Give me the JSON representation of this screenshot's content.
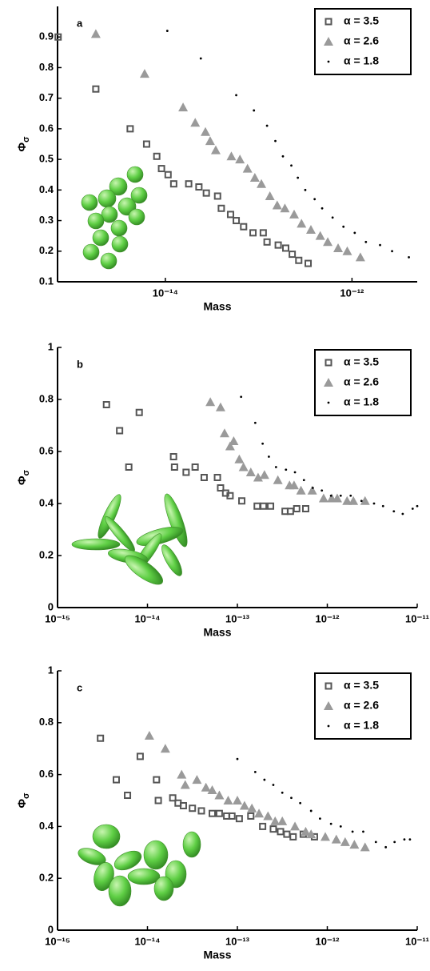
{
  "chart_data": [
    {
      "type": "scatter",
      "panel_label": "a",
      "xlabel": "Mass",
      "ylabel": "Φ",
      "ylabel_subscript": "σ",
      "xscale": "log",
      "xlim": [
        7e-16,
        5e-12
      ],
      "ylim": [
        0.1,
        1.0
      ],
      "grid": false,
      "legend": "upper right",
      "xticks": [
        {
          "value": 1e-14,
          "label": "10⁻¹⁴"
        },
        {
          "value": 1e-12,
          "label": "10⁻¹²"
        }
      ],
      "yticks": [
        0.1,
        0.2,
        0.3,
        0.4,
        0.5,
        0.6,
        0.7,
        0.8,
        0.9
      ],
      "series": [
        {
          "name": "α = 3.5",
          "marker": "square",
          "color": "#555555",
          "x": [
            7.1e-16,
            1.8e-15,
            4.2e-15,
            6.3e-15,
            8.1e-15,
            9.1e-15,
            1.07e-14,
            1.23e-14,
            1.78e-14,
            2.29e-14,
            2.75e-14,
            3.63e-14,
            3.98e-14,
            5e-14,
            5.75e-14,
            6.9e-14,
            8.7e-14,
            1.12e-13,
            1.23e-13,
            1.62e-13,
            1.95e-13,
            2.29e-13,
            2.69e-13,
            3.39e-13
          ],
          "values": [
            0.9,
            0.73,
            0.6,
            0.55,
            0.51,
            0.47,
            0.45,
            0.42,
            0.42,
            0.41,
            0.39,
            0.38,
            0.34,
            0.32,
            0.3,
            0.28,
            0.26,
            0.26,
            0.23,
            0.22,
            0.21,
            0.19,
            0.17,
            0.16
          ]
        },
        {
          "name": "α = 2.6",
          "marker": "triangle",
          "color": "#9a9a9a",
          "x": [
            1.8e-15,
            6e-15,
            1.55e-14,
            2.09e-14,
            2.69e-14,
            3.02e-14,
            3.47e-14,
            5.1e-14,
            6.3e-14,
            7.6e-14,
            9.1e-14,
            1.07e-13,
            1.32e-13,
            1.58e-13,
            1.91e-13,
            2.4e-13,
            2.88e-13,
            3.63e-13,
            4.57e-13,
            5.5e-13,
            7.1e-13,
            8.9e-13,
            1.23e-12
          ],
          "values": [
            0.91,
            0.78,
            0.67,
            0.62,
            0.59,
            0.56,
            0.53,
            0.51,
            0.5,
            0.47,
            0.44,
            0.42,
            0.38,
            0.35,
            0.34,
            0.32,
            0.29,
            0.27,
            0.25,
            0.23,
            0.21,
            0.2,
            0.18
          ]
        },
        {
          "name": "α = 1.8",
          "marker": "dot",
          "color": "#000000",
          "x": [
            1.05e-14,
            2.4e-14,
            5.75e-14,
            8.9e-14,
            1.23e-13,
            1.51e-13,
            1.82e-13,
            2.24e-13,
            2.63e-13,
            3.16e-13,
            3.98e-13,
            4.79e-13,
            6.2e-13,
            8.1e-13,
            1.07e-12,
            1.41e-12,
            2e-12,
            2.69e-12,
            4.07e-12
          ],
          "values": [
            0.92,
            0.83,
            0.71,
            0.66,
            0.61,
            0.56,
            0.51,
            0.48,
            0.44,
            0.4,
            0.37,
            0.34,
            0.31,
            0.28,
            0.26,
            0.23,
            0.22,
            0.2,
            0.18
          ]
        }
      ]
    },
    {
      "type": "scatter",
      "panel_label": "b",
      "xlabel": "Mass",
      "ylabel": "Φ",
      "ylabel_subscript": "σ",
      "xscale": "log",
      "xlim": [
        1e-15,
        1e-11
      ],
      "ylim": [
        0,
        1
      ],
      "grid": false,
      "legend": "upper right",
      "xticks": [
        {
          "value": 1e-15,
          "label": "10⁻¹⁵"
        },
        {
          "value": 1e-14,
          "label": "10⁻¹⁴"
        },
        {
          "value": 1e-13,
          "label": "10⁻¹³"
        },
        {
          "value": 1e-12,
          "label": "10⁻¹²"
        },
        {
          "value": 1e-11,
          "label": "10⁻¹¹"
        }
      ],
      "yticks": [
        0,
        0.2,
        0.4,
        0.6,
        0.8,
        1
      ],
      "series": [
        {
          "name": "α = 3.5",
          "marker": "square",
          "color": "#555555",
          "x": [
            3.5e-15,
            4.9e-15,
            6.2e-15,
            8.1e-15,
            1.95e-14,
            2e-14,
            2.69e-14,
            3.39e-14,
            4.27e-14,
            6e-14,
            6.5e-14,
            7.4e-14,
            8.3e-14,
            1.12e-13,
            1.66e-13,
            1.95e-13,
            2.34e-13,
            3.39e-13,
            3.89e-13,
            4.57e-13,
            5.75e-13
          ],
          "values": [
            0.78,
            0.68,
            0.54,
            0.75,
            0.58,
            0.54,
            0.52,
            0.54,
            0.5,
            0.5,
            0.46,
            0.44,
            0.43,
            0.41,
            0.39,
            0.39,
            0.39,
            0.37,
            0.37,
            0.38,
            0.38
          ]
        },
        {
          "name": "α = 2.6",
          "marker": "triangle",
          "color": "#9a9a9a",
          "x": [
            5e-14,
            6.5e-14,
            7.2e-14,
            8.3e-14,
            9.1e-14,
            1.05e-13,
            1.17e-13,
            1.41e-13,
            1.7e-13,
            2e-13,
            2.82e-13,
            3.8e-13,
            4.27e-13,
            5.1e-13,
            6.8e-13,
            9.1e-13,
            1.12e-12,
            1.29e-12,
            1.66e-12,
            1.95e-12,
            2.63e-12
          ],
          "values": [
            0.79,
            0.77,
            0.67,
            0.62,
            0.64,
            0.57,
            0.54,
            0.52,
            0.5,
            0.51,
            0.49,
            0.47,
            0.47,
            0.45,
            0.45,
            0.42,
            0.42,
            0.42,
            0.41,
            0.41,
            0.41
          ]
        },
        {
          "name": "α = 1.8",
          "marker": "dot",
          "color": "#000000",
          "x": [
            1.1e-13,
            1.58e-13,
            1.91e-13,
            2.24e-13,
            2.69e-13,
            3.47e-13,
            4.37e-13,
            5.5e-13,
            6.9e-13,
            8.7e-13,
            1.1e-12,
            1.41e-12,
            1.82e-12,
            2.4e-12,
            3.31e-12,
            4.17e-12,
            5.5e-12,
            6.9e-12,
            8.9e-12,
            1e-11
          ],
          "values": [
            0.81,
            0.71,
            0.63,
            0.58,
            0.54,
            0.53,
            0.52,
            0.49,
            0.46,
            0.45,
            0.43,
            0.43,
            0.43,
            0.41,
            0.4,
            0.39,
            0.37,
            0.36,
            0.38,
            0.39
          ]
        }
      ]
    },
    {
      "type": "scatter",
      "panel_label": "c",
      "xlabel": "Mass",
      "ylabel": "Φ",
      "ylabel_subscript": "σ",
      "xscale": "log",
      "xlim": [
        1e-15,
        1e-11
      ],
      "ylim": [
        0,
        1
      ],
      "grid": false,
      "legend": "upper right",
      "xticks": [
        {
          "value": 1e-15,
          "label": "10⁻¹⁵"
        },
        {
          "value": 1e-14,
          "label": "10⁻¹⁴"
        },
        {
          "value": 1e-13,
          "label": "10⁻¹³"
        },
        {
          "value": 1e-12,
          "label": "10⁻¹²"
        },
        {
          "value": 1e-11,
          "label": "10⁻¹¹"
        }
      ],
      "yticks": [
        0,
        0.2,
        0.4,
        0.6,
        0.8,
        1
      ],
      "series": [
        {
          "name": "α = 3.5",
          "marker": "square",
          "color": "#555555",
          "x": [
            3e-15,
            4.5e-15,
            6e-15,
            8.3e-15,
            1.26e-14,
            1.32e-14,
            1.91e-14,
            2.19e-14,
            2.51e-14,
            3.16e-14,
            3.98e-14,
            5.25e-14,
            6.3e-14,
            7.6e-14,
            8.7e-14,
            1.05e-13,
            1.41e-13,
            1.91e-13,
            2.51e-13,
            3.02e-13,
            3.55e-13,
            4.17e-13,
            5.4e-13,
            7.2e-13
          ],
          "values": [
            0.74,
            0.58,
            0.52,
            0.67,
            0.58,
            0.5,
            0.51,
            0.49,
            0.48,
            0.47,
            0.46,
            0.45,
            0.45,
            0.44,
            0.44,
            0.43,
            0.44,
            0.4,
            0.39,
            0.38,
            0.37,
            0.36,
            0.37,
            0.36
          ]
        },
        {
          "name": "α = 2.6",
          "marker": "triangle",
          "color": "#9a9a9a",
          "x": [
            1.05e-14,
            1.58e-14,
            2.4e-14,
            2.63e-14,
            3.55e-14,
            4.47e-14,
            5.25e-14,
            6.3e-14,
            7.9e-14,
            1e-13,
            1.2e-13,
            1.45e-13,
            1.74e-13,
            2.19e-13,
            2.63e-13,
            3.16e-13,
            4.37e-13,
            5.75e-13,
            6.6e-13,
            9.5e-13,
            1.26e-12,
            1.58e-12,
            2e-12,
            2.63e-12
          ],
          "values": [
            0.75,
            0.7,
            0.6,
            0.56,
            0.58,
            0.55,
            0.54,
            0.52,
            0.5,
            0.5,
            0.48,
            0.47,
            0.45,
            0.44,
            0.42,
            0.42,
            0.4,
            0.38,
            0.37,
            0.36,
            0.35,
            0.34,
            0.33,
            0.32
          ]
        },
        {
          "name": "α = 1.8",
          "marker": "dot",
          "color": "#000000",
          "x": [
            1e-13,
            1.58e-13,
            2e-13,
            2.51e-13,
            3.16e-13,
            3.98e-13,
            5e-13,
            6.6e-13,
            8.3e-13,
            1.1e-12,
            1.41e-12,
            1.91e-12,
            2.51e-12,
            3.47e-12,
            4.47e-12,
            5.6e-12,
            7.2e-12,
            8.3e-12
          ],
          "values": [
            0.66,
            0.61,
            0.58,
            0.56,
            0.53,
            0.51,
            0.49,
            0.46,
            0.43,
            0.41,
            0.4,
            0.38,
            0.38,
            0.34,
            0.32,
            0.34,
            0.35,
            0.35
          ]
        }
      ]
    }
  ]
}
